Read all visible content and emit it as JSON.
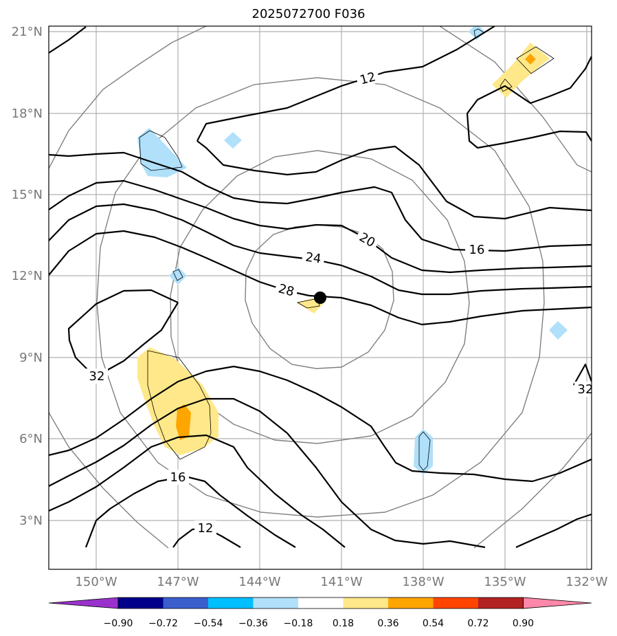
{
  "title": "2025072700 F036",
  "map": {
    "lat_labels": [
      "21°N",
      "18°N",
      "15°N",
      "12°N",
      "9°N",
      "6°N",
      "3°N"
    ],
    "lon_labels": [
      "150°W",
      "147°W",
      "144°W",
      "141°W",
      "138°W",
      "135°W",
      "132°W"
    ],
    "lon_range": [
      -151.75,
      -131.75
    ],
    "lat_range": [
      1.25,
      21.25
    ],
    "storm_center": {
      "lon": -141.8,
      "lat": 11.2
    },
    "contour_labels": [
      "12",
      "20",
      "16",
      "24",
      "28",
      "32",
      "32",
      "16",
      "12"
    ],
    "contour_color": "#000000",
    "range_ring_color": "#808080",
    "grid_color": "#b0b0b0"
  },
  "colorbar": {
    "tick_labels": [
      "−0.90",
      "−0.72",
      "−0.54",
      "−0.36",
      "−0.18",
      "0.18",
      "0.36",
      "0.54",
      "0.72",
      "0.90"
    ],
    "colors": [
      "#9932cc",
      "#00008b",
      "#3a5fcd",
      "#00bfff",
      "#b0e0fa",
      "#ffffff",
      "#ffe88a",
      "#ffa500",
      "#ff4500",
      "#b22222",
      "#ff88aa"
    ],
    "extend": "both"
  }
}
